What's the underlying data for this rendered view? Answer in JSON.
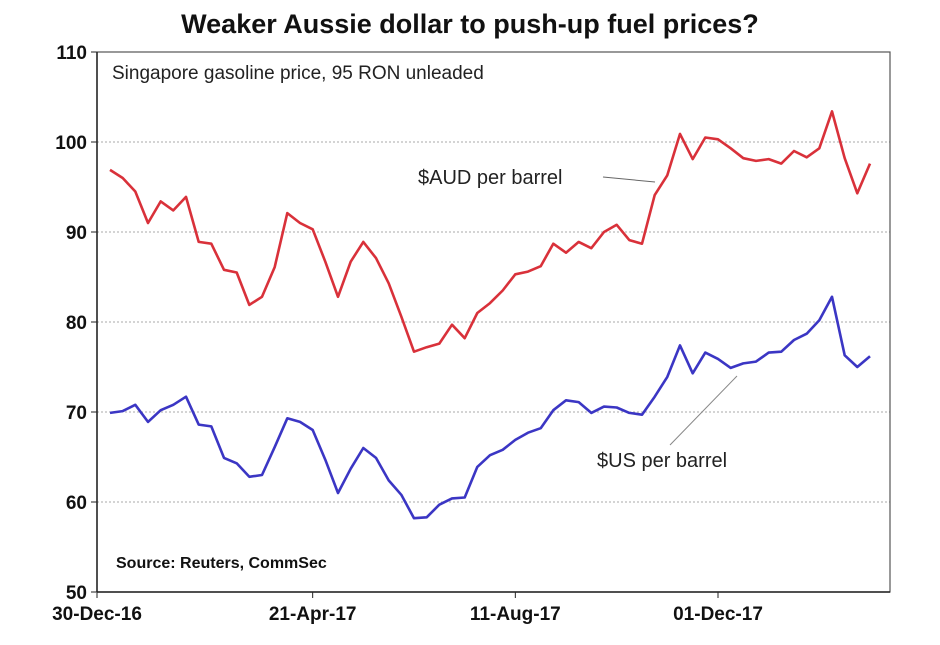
{
  "chart_data": {
    "type": "line",
    "title": "Weaker Aussie dollar to push-up fuel prices?",
    "subtitle": "Singapore gasoline price, 95 RON unleaded",
    "source": "Source: Reuters, CommSec",
    "xlabel": "",
    "ylabel": "",
    "ylim": [
      50,
      110
    ],
    "yticks": [
      "50",
      "60",
      "70",
      "80",
      "90",
      "100",
      "110"
    ],
    "xticks": [
      {
        "label": "30-Dec-16",
        "index": 0
      },
      {
        "label": "21-Apr-17",
        "index": 16
      },
      {
        "label": "11-Aug-17",
        "index": 32
      },
      {
        "label": "01-Dec-17",
        "index": 48
      }
    ],
    "frequency": "weekly",
    "grid": true,
    "series": [
      {
        "name": "$AUD per barrel",
        "color": "#d9313a",
        "values": [
          96.9,
          96.0,
          94.5,
          91.0,
          93.4,
          92.4,
          93.9,
          88.9,
          88.7,
          85.8,
          85.5,
          81.9,
          82.8,
          86.1,
          92.1,
          91.0,
          90.3,
          86.7,
          82.8,
          86.7,
          88.9,
          87.1,
          84.3,
          80.6,
          76.7,
          77.2,
          77.6,
          79.7,
          78.2,
          81.0,
          82.1,
          83.5,
          85.3,
          85.6,
          86.2,
          88.7,
          87.7,
          88.9,
          88.2,
          90.0,
          90.8,
          89.1,
          88.7,
          94.1,
          96.3,
          100.9,
          98.1,
          100.5,
          100.3,
          99.3,
          98.2,
          97.9,
          98.1,
          97.6,
          99.0,
          98.3,
          99.3,
          103.4,
          98.2,
          94.3,
          97.6
        ]
      },
      {
        "name": "$US per barrel",
        "color": "#3b36c4",
        "values": [
          69.9,
          70.1,
          70.8,
          68.9,
          70.2,
          70.8,
          71.7,
          68.6,
          68.4,
          64.9,
          64.3,
          62.8,
          63.0,
          66.1,
          69.3,
          68.9,
          68.0,
          64.7,
          61.0,
          63.7,
          66.0,
          64.9,
          62.4,
          60.8,
          58.2,
          58.3,
          59.7,
          60.4,
          60.5,
          63.9,
          65.2,
          65.8,
          66.9,
          67.7,
          68.2,
          70.2,
          71.3,
          71.1,
          69.9,
          70.6,
          70.5,
          69.9,
          69.7,
          71.7,
          73.9,
          77.4,
          74.3,
          76.6,
          75.9,
          74.9,
          75.4,
          75.6,
          76.6,
          76.7,
          78.0,
          78.7,
          80.2,
          82.8,
          76.3,
          75.0,
          76.2
        ]
      }
    ]
  }
}
